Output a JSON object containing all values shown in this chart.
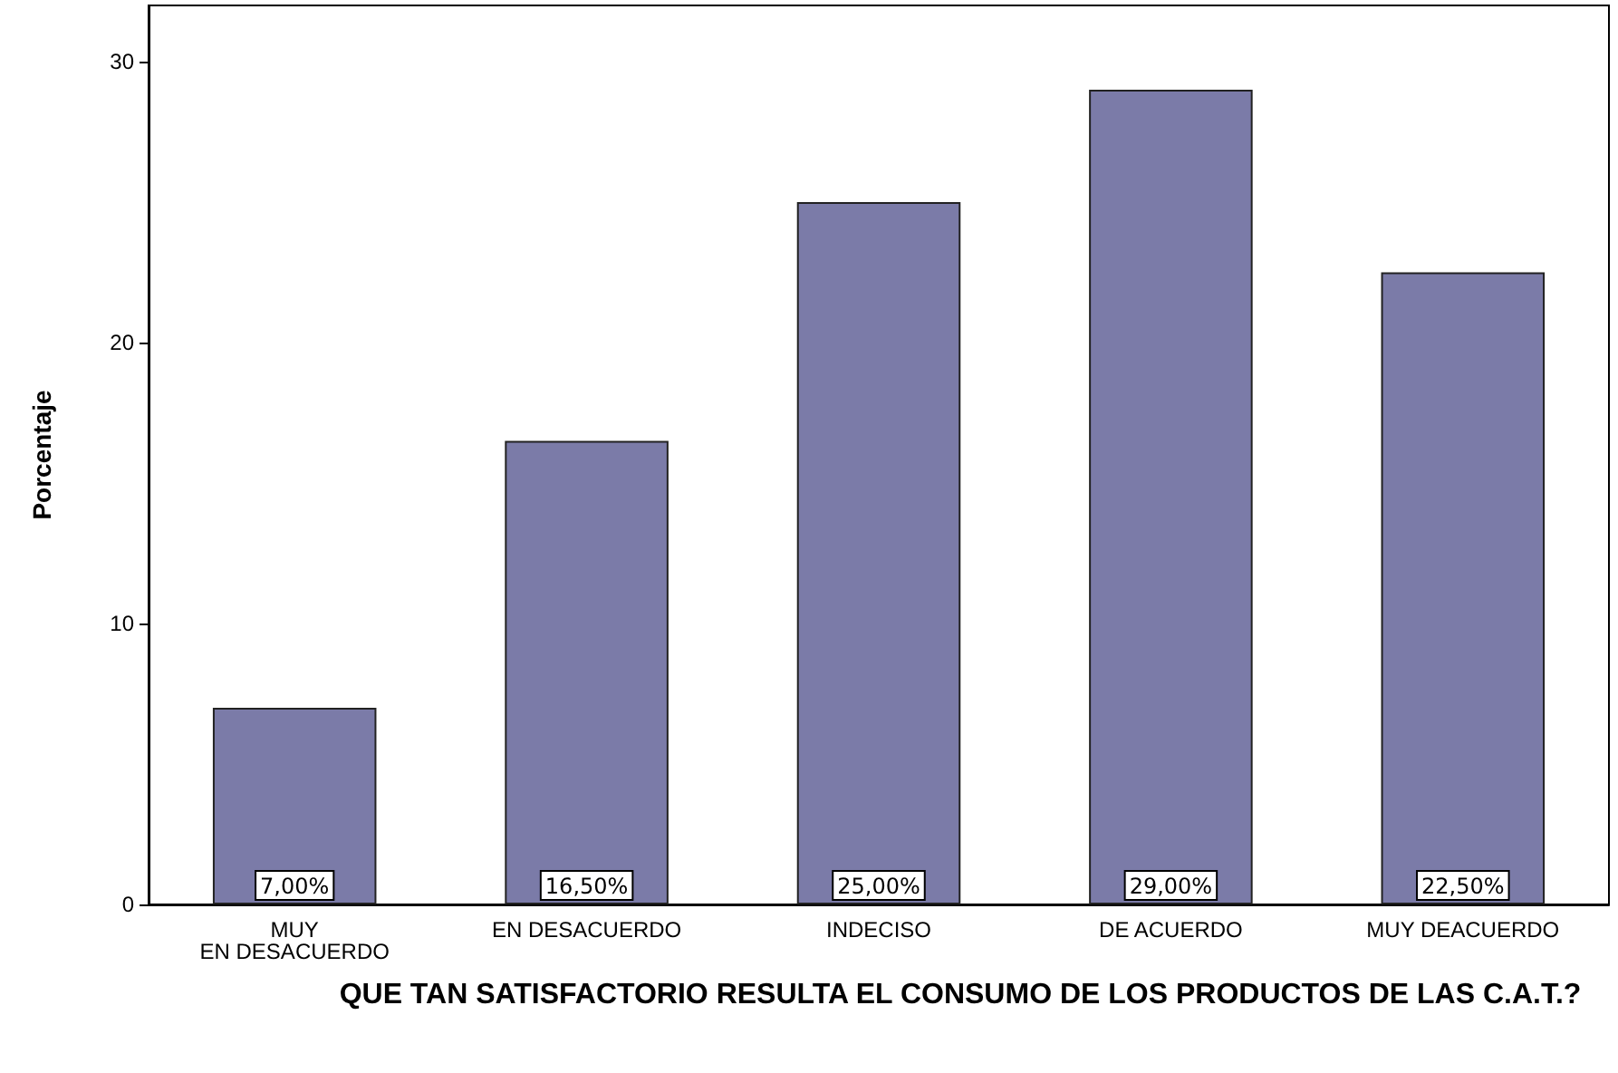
{
  "chart_data": {
    "type": "bar",
    "xlabel": "QUE TAN SATISFACTORIO RESULTA EL CONSUMO DE LOS PRODUCTOS DE LAS C.A.T.?",
    "ylabel": "Porcentaje",
    "categories": [
      "MUY EN DESACUERDO",
      "EN DESACUERDO",
      "INDECISO",
      "DE ACUERDO",
      "MUY DEACUERDO"
    ],
    "values": [
      7,
      16.5,
      25,
      29,
      22.5
    ],
    "value_labels": [
      "7,00%",
      "16,50%",
      "25,00%",
      "29,00%",
      "22,50%"
    ],
    "color": "#7b7ba8",
    "ylim": [
      0,
      32
    ],
    "yticks": [
      0,
      10,
      20,
      30
    ],
    "grid": false
  }
}
